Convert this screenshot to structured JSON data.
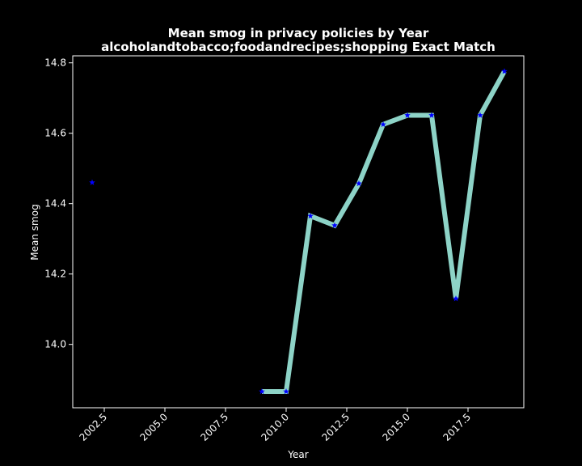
{
  "chart_data": {
    "type": "line",
    "title": "Mean smog in privacy policies by Year",
    "subtitle": "alcoholandtobacco;foodandrecipes;shopping Exact Match",
    "xlabel": "Year",
    "ylabel": "Mean smog",
    "xlim": [
      2001.2,
      2019.8
    ],
    "ylim": [
      13.82,
      14.82
    ],
    "xticks": [
      2002.5,
      2005.0,
      2007.5,
      2010.0,
      2012.5,
      2015.0,
      2017.5
    ],
    "xtick_labels": [
      "2002.5",
      "2005.0",
      "2007.5",
      "2010.0",
      "2012.5",
      "2015.0",
      "2017.5"
    ],
    "yticks": [
      14.0,
      14.2,
      14.4,
      14.6,
      14.8
    ],
    "ytick_labels": [
      "14.0",
      "14.2",
      "14.4",
      "14.6",
      "14.8"
    ],
    "grid": false,
    "series": [
      {
        "x": [
          2002,
          2009,
          2010,
          2011,
          2012,
          2013,
          2014,
          2015,
          2016,
          2017,
          2018,
          2019
        ],
        "values": [
          14.46,
          13.866,
          13.866,
          14.365,
          14.338,
          14.457,
          14.625,
          14.651,
          14.651,
          14.13,
          14.651,
          14.776
        ],
        "line_from_index": 1,
        "line_color": "#8dd3c7",
        "marker": "star",
        "marker_color": "#0000ff"
      }
    ],
    "colors": {
      "background": "#000000",
      "axes": "#ffffff",
      "text": "#ffffff"
    }
  }
}
